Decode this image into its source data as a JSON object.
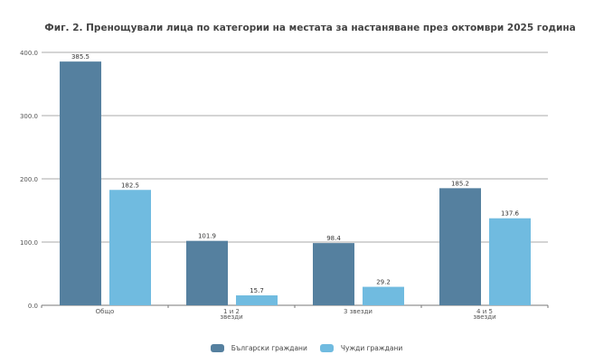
{
  "chart_data": {
    "type": "bar",
    "title": "Фиг. 2. Пренощували лица по категории на местата за настаняване през октомври 2025 година",
    "categories": [
      [
        "Общо"
      ],
      [
        "1 и 2",
        "звезди"
      ],
      [
        "3 звезди"
      ],
      [
        "4 и 5",
        "звезди"
      ]
    ],
    "series": [
      {
        "name": "Български граждани",
        "color": "#55809f",
        "values": [
          385.5,
          101.9,
          98.4,
          185.2
        ],
        "labels": [
          "385.5",
          "101.9",
          "98.4",
          "185.2"
        ]
      },
      {
        "name": "Чужди граждани",
        "color": "#70bbe0",
        "values": [
          182.5,
          15.7,
          29.2,
          137.6
        ],
        "labels": [
          "182.5",
          "15.7",
          "29.2",
          "137.6"
        ]
      }
    ],
    "ylim": [
      0,
      400
    ],
    "yticks": [
      "0.0",
      "100.0",
      "200.0",
      "300.0",
      "400.0"
    ],
    "grid": true,
    "legend": "bottom"
  }
}
